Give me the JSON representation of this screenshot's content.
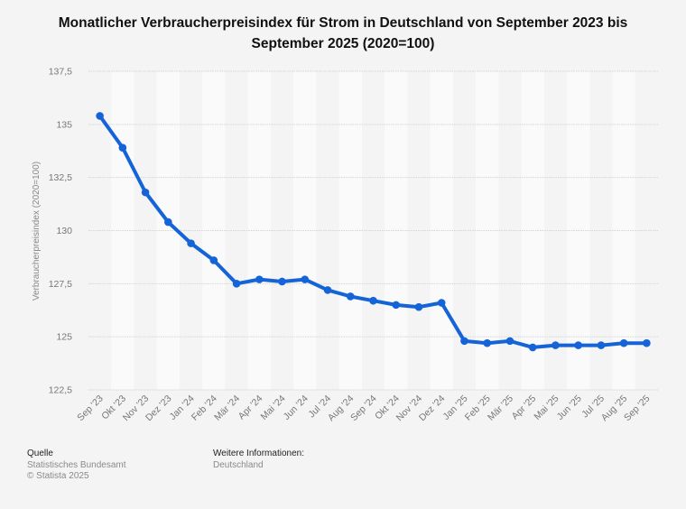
{
  "chart_data": {
    "type": "line",
    "title": "Monatlicher Verbraucherpreisindex für Strom in Deutschland von September 2023 bis September 2025 (2020=100)",
    "xlabel": "",
    "ylabel": "Verbraucherpreisindex (2020=100)",
    "ylim": [
      122.5,
      137.5
    ],
    "yticks": [
      122.5,
      125,
      127.5,
      130,
      132.5,
      135,
      137.5
    ],
    "ytick_labels": [
      "122,5",
      "125",
      "127,5",
      "130",
      "132,5",
      "135",
      "137,5"
    ],
    "grid": true,
    "legend": "none",
    "categories": [
      "Sep '23",
      "Okt '23",
      "Nov '23",
      "Dez '23",
      "Jan '24",
      "Feb '24",
      "Mär '24",
      "Apr '24",
      "Mai '24",
      "Jun '24",
      "Jul '24",
      "Aug '24",
      "Sep '24",
      "Okt '24",
      "Nov '24",
      "Dez '24",
      "Jan '25",
      "Feb '25",
      "Mär '25",
      "Apr '25",
      "Mai '25",
      "Jun '25",
      "Jul '25",
      "Aug '25",
      "Sep '25"
    ],
    "series": [
      {
        "name": "Verbraucherpreisindex",
        "color": "#1464d8",
        "values": [
          135.4,
          133.9,
          131.8,
          130.4,
          129.4,
          128.6,
          127.5,
          127.7,
          127.6,
          127.7,
          127.2,
          126.9,
          126.7,
          126.5,
          126.4,
          126.6,
          124.8,
          124.7,
          124.8,
          124.5,
          124.6,
          124.6,
          124.6,
          124.7,
          124.7
        ]
      }
    ]
  },
  "footer": {
    "source_heading": "Quelle",
    "source": "Statistisches Bundesamt",
    "copyright": "© Statista 2025",
    "info_heading": "Weitere Informationen:",
    "info": "Deutschland"
  },
  "colors": {
    "background": "#f4f4f4",
    "stripe": "#fafafa",
    "grid": "#d6d6d6",
    "axis_text": "#777777"
  }
}
